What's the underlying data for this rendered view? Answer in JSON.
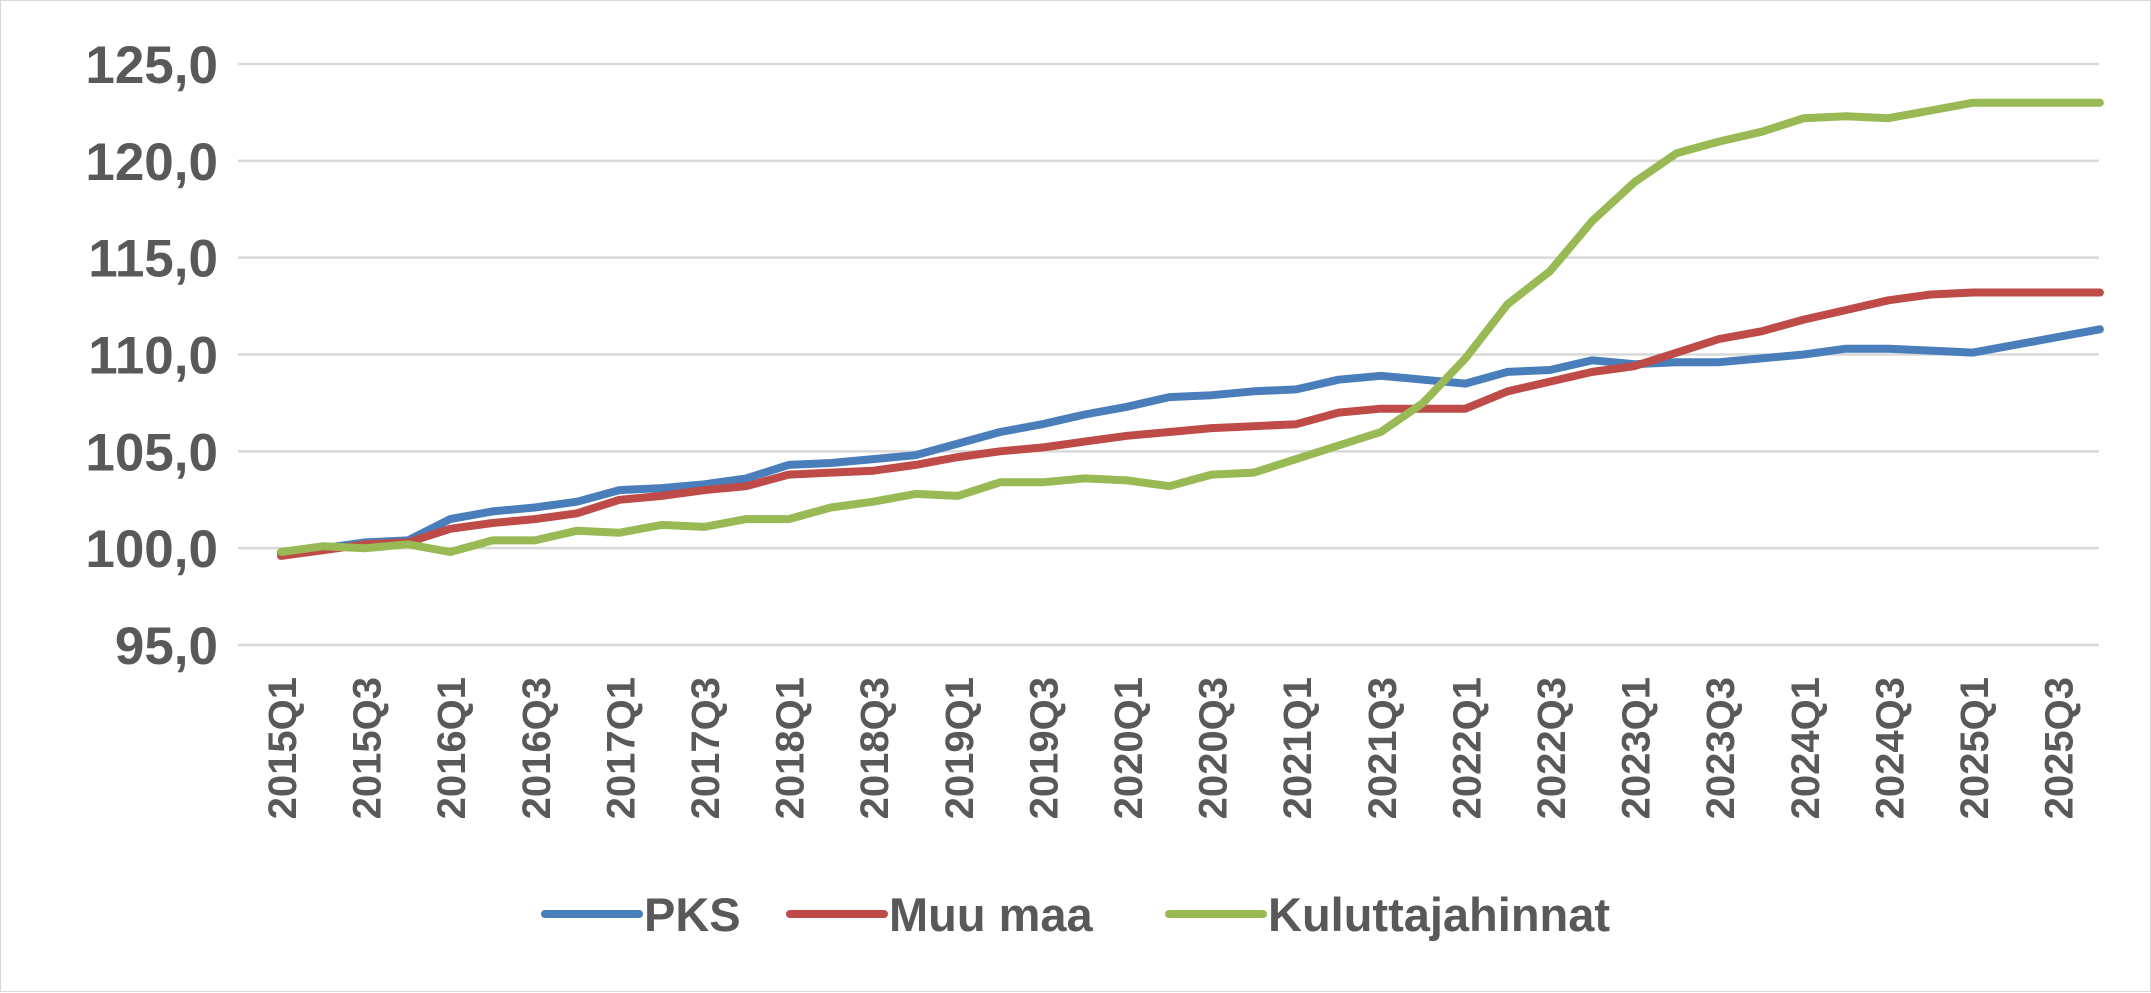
{
  "chart_data": {
    "type": "line",
    "title": "",
    "xlabel": "",
    "ylabel": "",
    "ylim": [
      95,
      125
    ],
    "yticks": [
      "95,0",
      "100,0",
      "105,0",
      "110,0",
      "115,0",
      "120,0",
      "125,0"
    ],
    "ytick_values": [
      95,
      100,
      105,
      110,
      115,
      120,
      125
    ],
    "grid": true,
    "legend_position": "bottom",
    "x": [
      "2015Q1",
      "2015Q2",
      "2015Q3",
      "2015Q4",
      "2016Q1",
      "2016Q2",
      "2016Q3",
      "2016Q4",
      "2017Q1",
      "2017Q2",
      "2017Q3",
      "2017Q4",
      "2018Q1",
      "2018Q2",
      "2018Q3",
      "2018Q4",
      "2019Q1",
      "2019Q2",
      "2019Q3",
      "2019Q4",
      "2020Q1",
      "2020Q2",
      "2020Q3",
      "2020Q4",
      "2021Q1",
      "2021Q2",
      "2021Q3",
      "2021Q4",
      "2022Q1",
      "2022Q2",
      "2022Q3",
      "2022Q4",
      "2023Q1",
      "2023Q2",
      "2023Q3",
      "2023Q4",
      "2024Q1",
      "2024Q2",
      "2024Q3",
      "2024Q4",
      "2025Q1",
      "2025Q2",
      "2025Q3",
      "2025Q4"
    ],
    "x_tick_labels": [
      "2015Q1",
      "2015Q3",
      "2016Q1",
      "2016Q3",
      "2017Q1",
      "2017Q3",
      "2018Q1",
      "2018Q3",
      "2019Q1",
      "2019Q3",
      "2020Q1",
      "2020Q3",
      "2021Q1",
      "2021Q3",
      "2022Q1",
      "2022Q3",
      "2023Q1",
      "2023Q3",
      "2024Q1",
      "2024Q3",
      "2025Q1",
      "2025Q3"
    ],
    "series": [
      {
        "name": "PKS",
        "color": "#4a7ebb",
        "values": [
          99.7,
          100.0,
          100.3,
          100.4,
          101.5,
          101.9,
          102.1,
          102.4,
          103.0,
          103.1,
          103.3,
          103.6,
          104.3,
          104.4,
          104.6,
          104.8,
          105.4,
          106.0,
          106.4,
          106.9,
          107.3,
          107.8,
          107.9,
          108.1,
          108.2,
          108.7,
          108.9,
          108.7,
          108.5,
          109.1,
          109.2,
          109.7,
          109.5,
          109.6,
          109.6,
          109.8,
          110.0,
          110.3,
          110.3,
          110.2,
          110.1,
          110.5,
          110.9,
          111.3
        ]
      },
      {
        "name": "Muu maa",
        "color": "#be4b48",
        "values": [
          99.6,
          99.9,
          100.2,
          100.3,
          101.0,
          101.3,
          101.5,
          101.8,
          102.5,
          102.7,
          103.0,
          103.2,
          103.8,
          103.9,
          104.0,
          104.3,
          104.7,
          105.0,
          105.2,
          105.5,
          105.8,
          106.0,
          106.2,
          106.3,
          106.4,
          107.0,
          107.2,
          107.2,
          107.2,
          108.1,
          108.6,
          109.1,
          109.4,
          110.1,
          110.8,
          111.2,
          111.8,
          112.3,
          112.8,
          113.1,
          113.2,
          113.2,
          113.2,
          113.2
        ]
      },
      {
        "name": "Kuluttajahinnat",
        "color": "#98b954",
        "values": [
          99.8,
          100.1,
          100.0,
          100.2,
          99.8,
          100.4,
          100.4,
          100.9,
          100.8,
          101.2,
          101.1,
          101.5,
          101.5,
          102.1,
          102.4,
          102.8,
          102.7,
          103.4,
          103.4,
          103.6,
          103.5,
          103.2,
          103.8,
          103.9,
          104.6,
          105.3,
          106.0,
          107.5,
          109.8,
          112.6,
          114.3,
          116.9,
          118.9,
          120.4,
          121.0,
          121.5,
          122.2,
          122.3,
          122.2,
          122.6,
          123.0,
          123.0,
          123.0,
          123.0
        ]
      }
    ]
  }
}
